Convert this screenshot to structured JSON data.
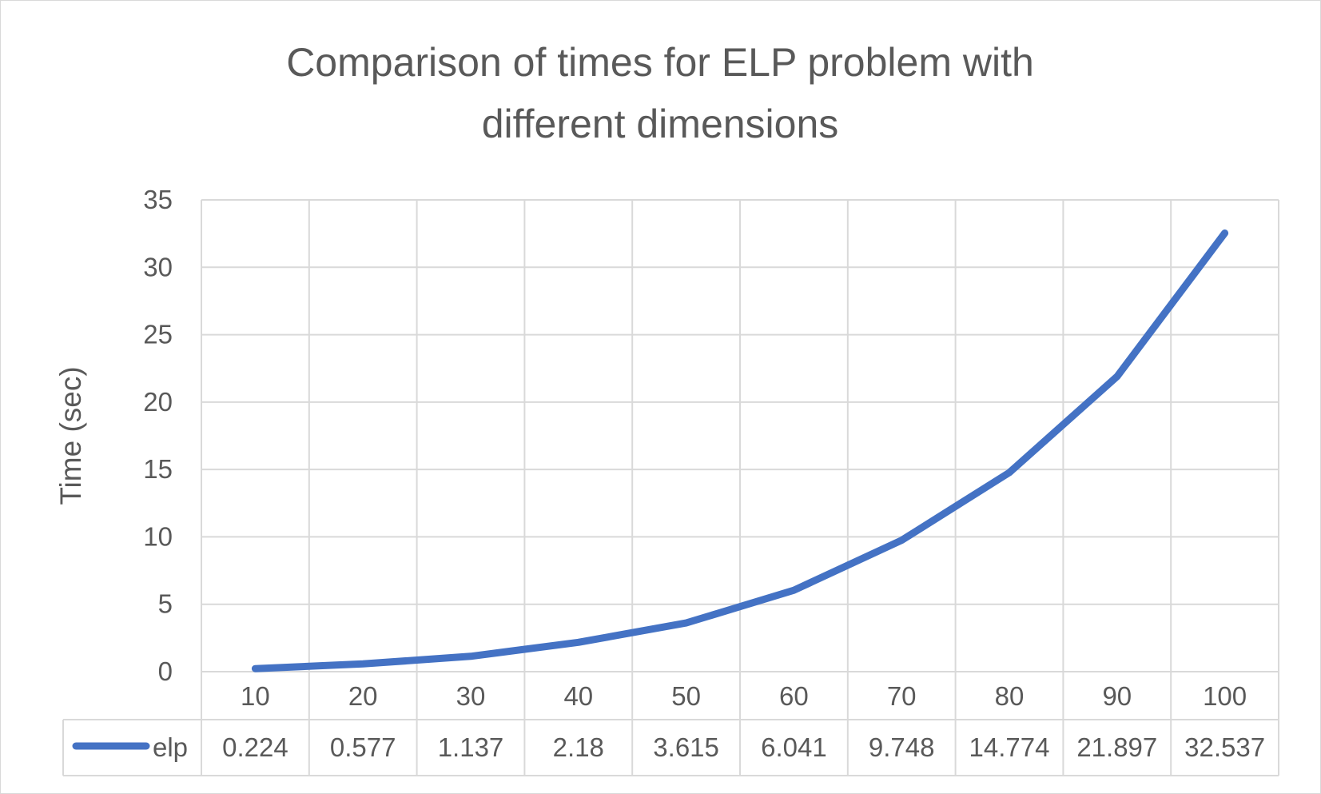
{
  "chart_data": {
    "type": "line",
    "title_lines": [
      "Comparison of times for ELP problem with",
      "different dimensions"
    ],
    "xlabel": "",
    "ylabel": "Time (sec)",
    "categories": [
      "10",
      "20",
      "30",
      "40",
      "50",
      "60",
      "70",
      "80",
      "90",
      "100"
    ],
    "series": [
      {
        "name": "elp",
        "color": "#4472c4",
        "values": [
          0.224,
          0.577,
          1.137,
          2.18,
          3.615,
          6.041,
          9.748,
          14.774,
          21.897,
          32.537
        ],
        "labels": [
          "0.224",
          "0.577",
          "1.137",
          "2.18",
          "3.615",
          "6.041",
          "9.748",
          "14.774",
          "21.897",
          "32.537"
        ]
      }
    ],
    "y_ticks": [
      "0",
      "5",
      "10",
      "15",
      "20",
      "25",
      "30",
      "35"
    ],
    "ylim": [
      0,
      35
    ],
    "grid": true,
    "data_table": true,
    "colors": {
      "text": "#595959",
      "grid": "#d9d9d9"
    }
  }
}
